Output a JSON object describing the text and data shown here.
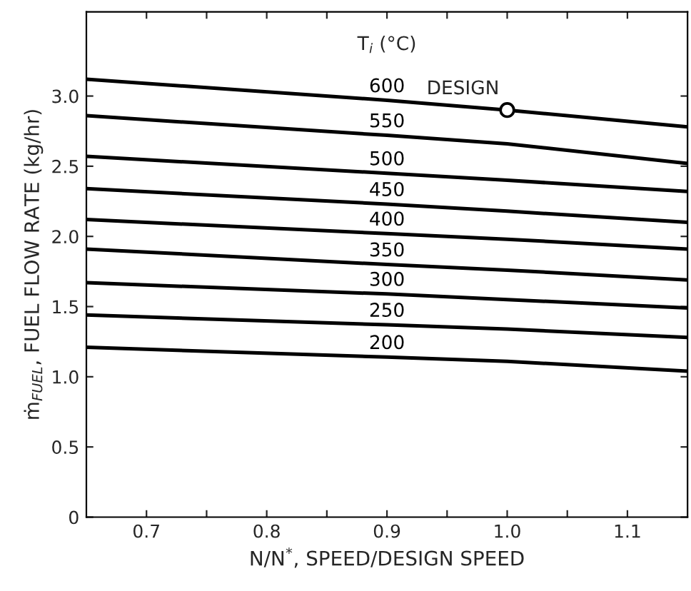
{
  "chart_data": {
    "type": "line",
    "xlabel": "N/N$^{*}$, SPEED/DESIGN SPEED",
    "ylabel": "ṁ$_{FUEL}$, FUEL FLOW RATE (kg/hr)",
    "legend_title": "T$_{i}$ (°C)",
    "xlim": [
      0.65,
      1.15
    ],
    "ylim": [
      0,
      3.6
    ],
    "xticks": [
      0.7,
      {
        "value": 0.75,
        "label": null
      },
      0.8,
      {
        "value": 0.85,
        "label": null
      },
      0.9,
      {
        "value": 0.95,
        "label": null
      },
      {
        "value": 1,
        "label": "1.0"
      },
      {
        "value": 1.05,
        "label": null
      },
      1.1
    ],
    "yticks": [
      0,
      0.5,
      {
        "value": 1,
        "label": "1.0"
      },
      1.5,
      {
        "value": 2,
        "label": "2.0"
      },
      2.5,
      {
        "value": 3,
        "label": "3.0"
      }
    ],
    "grid": false,
    "legend": false,
    "marker": "none",
    "line_style": "solid",
    "x": [
      0.65,
      0.9,
      1.0,
      1.15
    ],
    "series": [
      {
        "name": "600",
        "color": "#000000",
        "values": [
          3.12,
          2.97,
          2.9,
          2.78
        ]
      },
      {
        "name": "550",
        "color": "#000000",
        "values": [
          2.86,
          2.72,
          2.66,
          2.52
        ]
      },
      {
        "name": "500",
        "color": "#000000",
        "values": [
          2.57,
          2.45,
          2.4,
          2.32
        ]
      },
      {
        "name": "450",
        "color": "#000000",
        "values": [
          2.34,
          2.23,
          2.18,
          2.1
        ]
      },
      {
        "name": "400",
        "color": "#000000",
        "values": [
          2.12,
          2.02,
          1.98,
          1.91
        ]
      },
      {
        "name": "350",
        "color": "#000000",
        "values": [
          1.91,
          1.8,
          1.76,
          1.69
        ]
      },
      {
        "name": "300",
        "color": "#000000",
        "values": [
          1.67,
          1.59,
          1.55,
          1.49
        ]
      },
      {
        "name": "250",
        "color": "#000000",
        "values": [
          1.44,
          1.37,
          1.34,
          1.28
        ]
      },
      {
        "name": "200",
        "color": "#000000",
        "values": [
          1.21,
          1.14,
          1.11,
          1.04
        ]
      },
      {
        "type": "scatter",
        "marker": "circle",
        "color": "#000000",
        "x": [
          1.0
        ],
        "values": [
          2.9
        ]
      }
    ],
    "annotations": [
      {
        "text": "DESIGN",
        "x": 1.0,
        "y": 2.9
      }
    ]
  }
}
